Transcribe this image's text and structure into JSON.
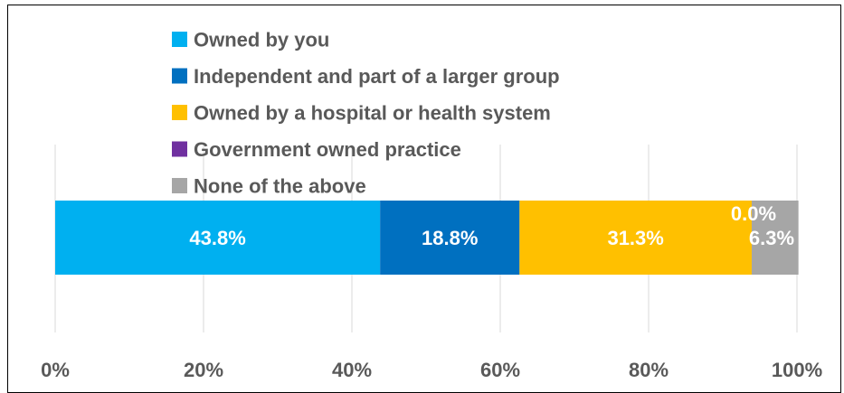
{
  "chart_data": {
    "type": "bar",
    "orientation": "horizontal",
    "stacked": true,
    "categories": [
      ""
    ],
    "series": [
      {
        "name": "Owned by you",
        "values": [
          43.8
        ],
        "label": "43.8%",
        "color": "#00B0F0"
      },
      {
        "name": "Independent and part of a larger group",
        "values": [
          18.8
        ],
        "label": "18.8%",
        "color": "#0070C0"
      },
      {
        "name": "Owned by a hospital or health system",
        "values": [
          31.3
        ],
        "label": "31.3%",
        "color": "#FFC000"
      },
      {
        "name": "Government owned practice",
        "values": [
          0.0
        ],
        "label": "0.0%",
        "color": "#7030A0"
      },
      {
        "name": "None of the above",
        "values": [
          6.3
        ],
        "label": "6.3%",
        "color": "#A6A6A6"
      }
    ],
    "xlim": [
      0,
      100
    ],
    "xticks": [
      "0%",
      "20%",
      "40%",
      "60%",
      "80%",
      "100%"
    ],
    "grid": true,
    "legend_position": "top"
  }
}
